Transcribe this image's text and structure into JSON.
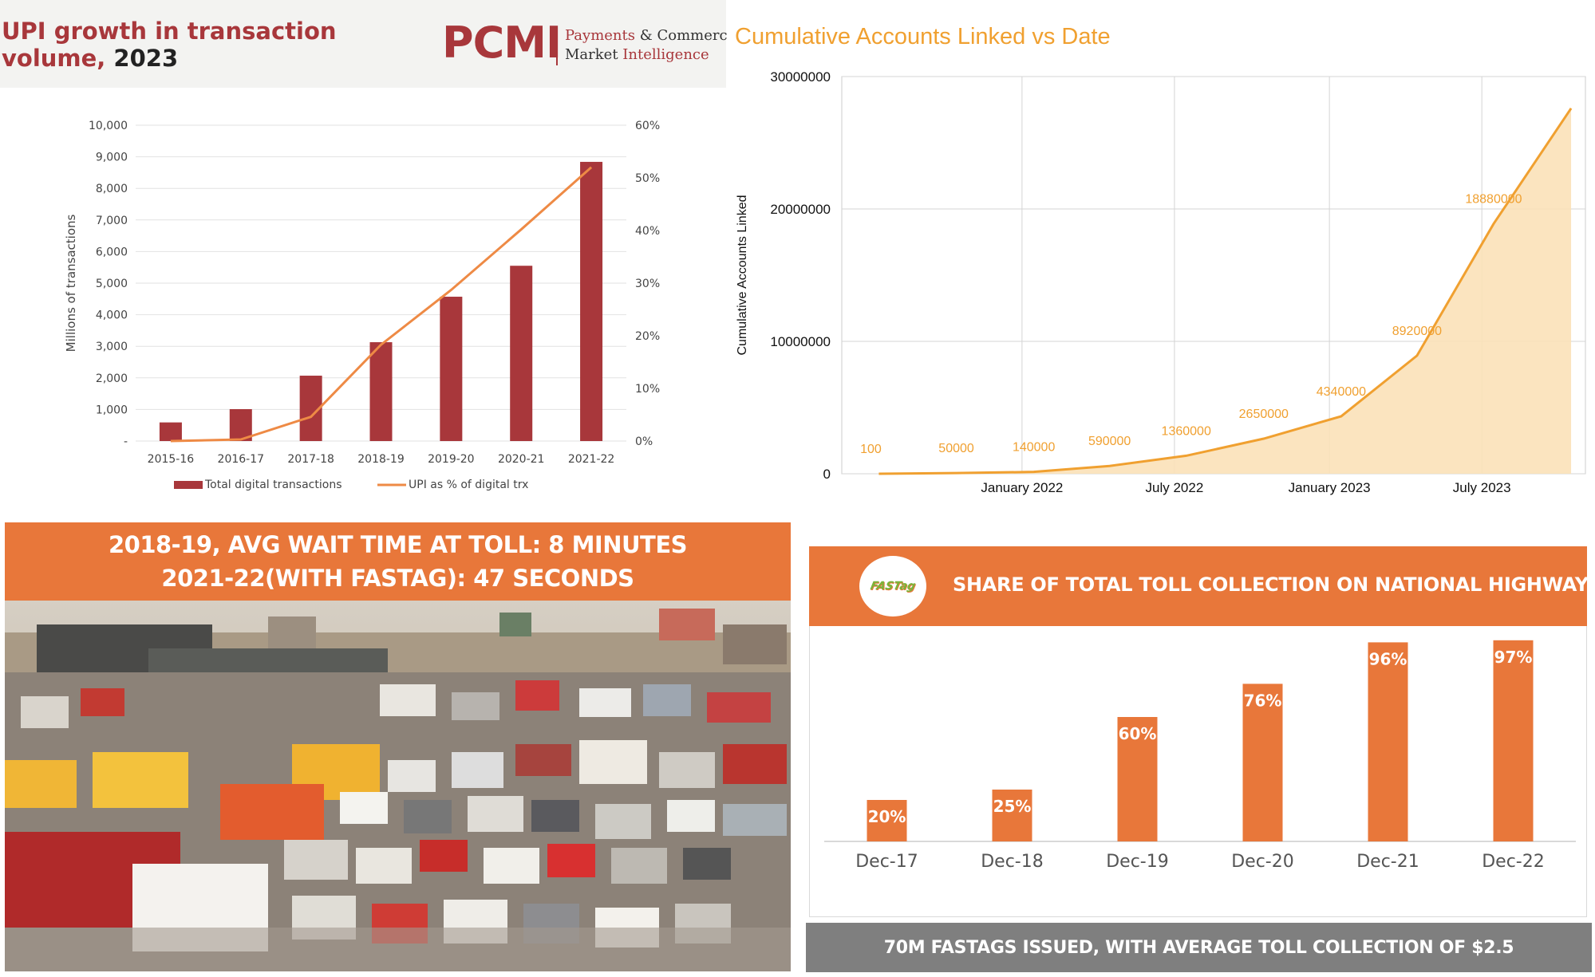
{
  "upi": {
    "title_line1": "UPI growth in transaction",
    "title_line2_prefix": "volume, ",
    "title_line2_year": "2023",
    "logo": {
      "mark": "PCMI",
      "sub1_a": "Payments ",
      "sub1_b": "& Commerce",
      "sub2_a": "Market ",
      "sub2_b": "Intelligence"
    }
  },
  "cumulative": {
    "title": "Cumulative Accounts Linked vs Date"
  },
  "toll": {
    "banner_line1": "2018-19, AVG WAIT TIME AT TOLL: 8 MINUTES",
    "banner_line2": "2021-22(WITH FASTAG): 47 SECONDS",
    "photo_icon": "traffic-jam-photo"
  },
  "fastag": {
    "logo_text": "FASTag",
    "title": "SHARE OF TOTAL TOLL COLLECTION ON NATIONAL HIGHWAYS",
    "footer": "70M FASTAGS ISSUED, WITH AVERAGE TOLL COLLECTION OF $2.5"
  },
  "colors": {
    "upi_bar": "#a8373b",
    "upi_line": "#ee8a45",
    "cum_line": "#f0a030",
    "cum_fill": "#fbe1b8",
    "fastag_orange": "#e8773a",
    "footer_gray": "#7f7f7f"
  },
  "chart_data": [
    {
      "id": "upi",
      "type": "bar",
      "categories": [
        "2015-16",
        "2016-17",
        "2017-18",
        "2018-19",
        "2019-20",
        "2020-21",
        "2021-22"
      ],
      "series": [
        {
          "name": "Total digital transactions",
          "type": "bar",
          "axis": "left",
          "values": [
            590,
            1010,
            2070,
            3130,
            4570,
            5550,
            8840
          ]
        },
        {
          "name": "UPI as % of digital trx",
          "type": "line",
          "axis": "right",
          "values": [
            0.0,
            0.3,
            4.6,
            18.3,
            28.7,
            40.2,
            52.0
          ]
        }
      ],
      "ylabel": "Millions of transactions",
      "ylim": [
        0,
        10000
      ],
      "yticks": [
        "-",
        "1,000",
        "2,000",
        "3,000",
        "4,000",
        "5,000",
        "6,000",
        "7,000",
        "8,000",
        "9,000",
        "10,000"
      ],
      "y2lim": [
        0,
        60
      ],
      "y2ticks": [
        "0%",
        "10%",
        "20%",
        "30%",
        "40%",
        "50%",
        "60%"
      ],
      "grid": true,
      "legend": "bottom"
    },
    {
      "id": "cumulative",
      "type": "area",
      "x": [
        "2021-07-15",
        "2021-10-15",
        "2022-01-15",
        "2022-04-15",
        "2022-07-15",
        "2022-10-15",
        "2023-01-15",
        "2023-04-15",
        "2023-07-15",
        "2023-10-15"
      ],
      "values": [
        100,
        50000,
        140000,
        590000,
        1360000,
        2650000,
        4340000,
        8920000,
        18880000,
        27600000
      ],
      "data_labels": [
        "100",
        "50000",
        "140000",
        "590000",
        "1360000",
        "2650000",
        "4340000",
        "8920000",
        "18880000",
        ""
      ],
      "xticks": [
        "January 2022",
        "July 2022",
        "January 2023",
        "July 2023"
      ],
      "ylabel": "Cumulative Accounts Linked",
      "ylim": [
        0,
        30000000
      ],
      "yticks": [
        "0",
        "10000000",
        "20000000",
        "30000000"
      ],
      "grid": true
    },
    {
      "id": "fastag",
      "type": "bar",
      "categories": [
        "Dec-17",
        "Dec-18",
        "Dec-19",
        "Dec-20",
        "Dec-21",
        "Dec-22"
      ],
      "values": [
        20,
        25,
        60,
        76,
        96,
        97
      ],
      "data_labels": [
        "20%",
        "25%",
        "60%",
        "76%",
        "96%",
        "97%"
      ],
      "ylim": [
        0,
        100
      ],
      "grid": false
    }
  ]
}
